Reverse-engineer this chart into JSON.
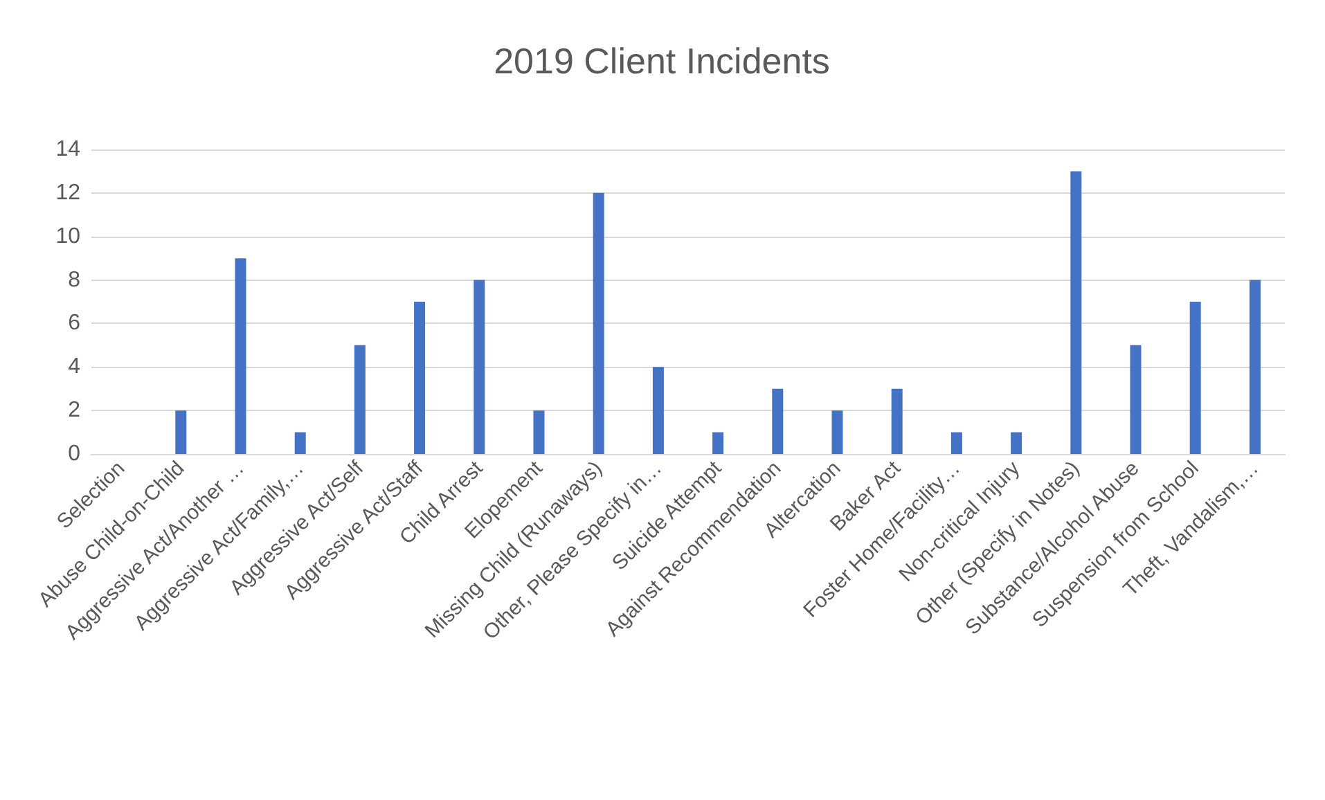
{
  "chart_data": {
    "type": "bar",
    "title": "2019 Client Incidents",
    "categories": [
      "Selection",
      "Abuse Child-on-Child",
      "Aggressive Act/Another …",
      "Aggressive Act/Family,…",
      "Aggressive Act/Self",
      "Aggressive Act/Staff",
      "Child Arrest",
      "Elopement",
      "Missing Child (Runaways)",
      "Other, Please Specify in…",
      "Suicide Attempt",
      "Against Recommendation",
      "Altercation",
      "Baker Act",
      "Foster Home/Facility…",
      "Non-critical Injury",
      "Other (Specify in Notes)",
      "Substance/Alcohol Abuse",
      "Suspension from School",
      "Theft, Vandalism,…"
    ],
    "values": [
      0,
      2,
      9,
      1,
      5,
      7,
      8,
      2,
      12,
      4,
      1,
      3,
      2,
      3,
      1,
      1,
      13,
      5,
      7,
      8
    ],
    "color": "#4472c4",
    "ylim": [
      0,
      14
    ],
    "yticks": [
      0,
      2,
      4,
      6,
      8,
      10,
      12,
      14
    ],
    "grid": "y"
  }
}
